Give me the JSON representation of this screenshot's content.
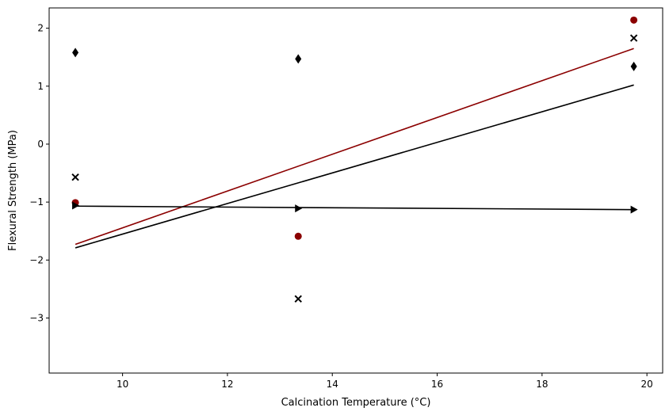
{
  "chart_data": {
    "type": "scatter",
    "title": "",
    "xlabel": "Calcination Temperature (°C)",
    "ylabel": "Flexural Strength (MPa)",
    "xlim": [
      8.6,
      20.3
    ],
    "ylim": [
      -3.95,
      2.35
    ],
    "xticks": [
      10,
      12,
      14,
      16,
      18,
      20
    ],
    "yticks": [
      -3,
      -2,
      -1,
      0,
      1,
      2
    ],
    "ytick_labels": [
      "−3",
      "−2",
      "−1",
      "0",
      "1",
      "2"
    ],
    "grid": false,
    "legend": "none",
    "series": [
      {
        "marker": "diamond",
        "color": "#000000",
        "points": [
          [
            9.1,
            1.58
          ],
          [
            13.35,
            1.47
          ],
          [
            19.75,
            1.34
          ]
        ]
      },
      {
        "marker": "x",
        "color": "#000000",
        "points": [
          [
            9.1,
            -0.57
          ],
          [
            13.35,
            -2.67
          ],
          [
            19.75,
            1.83
          ]
        ],
        "fit": {
          "x": [
            9.1,
            19.75
          ],
          "y": [
            -1.79,
            1.02
          ]
        }
      },
      {
        "marker": "circle",
        "color": "#8b0000",
        "points": [
          [
            9.1,
            -1.01
          ],
          [
            13.35,
            -1.59
          ],
          [
            19.75,
            2.14
          ]
        ],
        "fit": {
          "x": [
            9.1,
            19.75
          ],
          "y": [
            -1.73,
            1.65
          ]
        }
      },
      {
        "marker": "triangle-right",
        "color": "#000000",
        "points": [
          [
            9.1,
            -1.06
          ],
          [
            13.35,
            -1.11
          ],
          [
            19.75,
            -1.13
          ]
        ],
        "fit": {
          "x": [
            9.1,
            19.75
          ],
          "y": [
            -1.07,
            -1.13
          ]
        }
      }
    ]
  }
}
